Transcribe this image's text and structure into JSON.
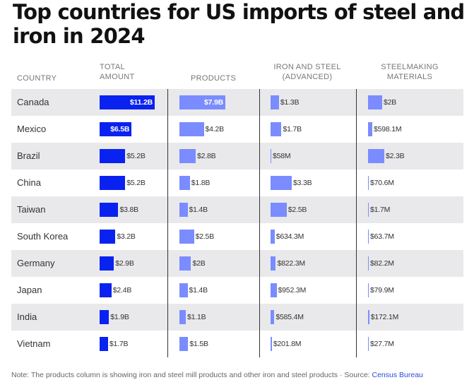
{
  "title": "Top countries for US imports of steel and iron in 2024",
  "headers": {
    "country": "COUNTRY",
    "total": [
      "TOTAL",
      "AMOUNT"
    ],
    "products": "PRODUCTS",
    "advanced": [
      "IRON AND STEEL",
      "(ADVANCED)"
    ],
    "steelmaking": [
      "STEELMAKING",
      "MATERIALS"
    ]
  },
  "colors": {
    "total": "#0a22f0",
    "other": "#7a8cff",
    "shade": "#e9e9eb"
  },
  "chart_data": {
    "type": "table",
    "title": "Top countries for US imports of steel and iron in 2024",
    "columns": [
      "Total amount",
      "Products",
      "Iron and steel (advanced)",
      "Steelmaking materials"
    ],
    "rows": [
      {
        "country": "Canada",
        "total": 11.2,
        "total_label": "$11.2B",
        "products": 7.9,
        "products_label": "$7.9B",
        "advanced": 1.3,
        "advanced_label": "$1.3B",
        "steelmaking": 2.0,
        "steelmaking_label": "$2B"
      },
      {
        "country": "Mexico",
        "total": 6.5,
        "total_label": "$6.5B",
        "products": 4.2,
        "products_label": "$4.2B",
        "advanced": 1.7,
        "advanced_label": "$1.7B",
        "steelmaking": 0.5981,
        "steelmaking_label": "$598.1M"
      },
      {
        "country": "Brazil",
        "total": 5.2,
        "total_label": "$5.2B",
        "products": 2.8,
        "products_label": "$2.8B",
        "advanced": 0.058,
        "advanced_label": "$58M",
        "steelmaking": 2.3,
        "steelmaking_label": "$2.3B"
      },
      {
        "country": "China",
        "total": 5.2,
        "total_label": "$5.2B",
        "products": 1.8,
        "products_label": "$1.8B",
        "advanced": 3.3,
        "advanced_label": "$3.3B",
        "steelmaking": 0.0706,
        "steelmaking_label": "$70.6M"
      },
      {
        "country": "Taiwan",
        "total": 3.8,
        "total_label": "$3.8B",
        "products": 1.4,
        "products_label": "$1.4B",
        "advanced": 2.5,
        "advanced_label": "$2.5B",
        "steelmaking": 0.0017,
        "steelmaking_label": "$1.7M"
      },
      {
        "country": "South Korea",
        "total": 3.2,
        "total_label": "$3.2B",
        "products": 2.5,
        "products_label": "$2.5B",
        "advanced": 0.6343,
        "advanced_label": "$634.3M",
        "steelmaking": 0.0637,
        "steelmaking_label": "$63.7M"
      },
      {
        "country": "Germany",
        "total": 2.9,
        "total_label": "$2.9B",
        "products": 2.0,
        "products_label": "$2B",
        "advanced": 0.8223,
        "advanced_label": "$822.3M",
        "steelmaking": 0.0822,
        "steelmaking_label": "$82.2M"
      },
      {
        "country": "Japan",
        "total": 2.4,
        "total_label": "$2.4B",
        "products": 1.4,
        "products_label": "$1.4B",
        "advanced": 0.9523,
        "advanced_label": "$952.3M",
        "steelmaking": 0.0799,
        "steelmaking_label": "$79.9M"
      },
      {
        "country": "India",
        "total": 1.9,
        "total_label": "$1.9B",
        "products": 1.1,
        "products_label": "$1.1B",
        "advanced": 0.5854,
        "advanced_label": "$585.4M",
        "steelmaking": 0.1721,
        "steelmaking_label": "$172.1M"
      },
      {
        "country": "Vietnam",
        "total": 1.7,
        "total_label": "$1.7B",
        "products": 1.5,
        "products_label": "$1.5B",
        "advanced": 0.2018,
        "advanced_label": "$201.8M",
        "steelmaking": 0.0277,
        "steelmaking_label": "$27.7M"
      }
    ]
  },
  "note": {
    "text": "Note: The products column is showing iron and steel mill products and other iron and steel products · Source: ",
    "link": "Census Bureau"
  }
}
